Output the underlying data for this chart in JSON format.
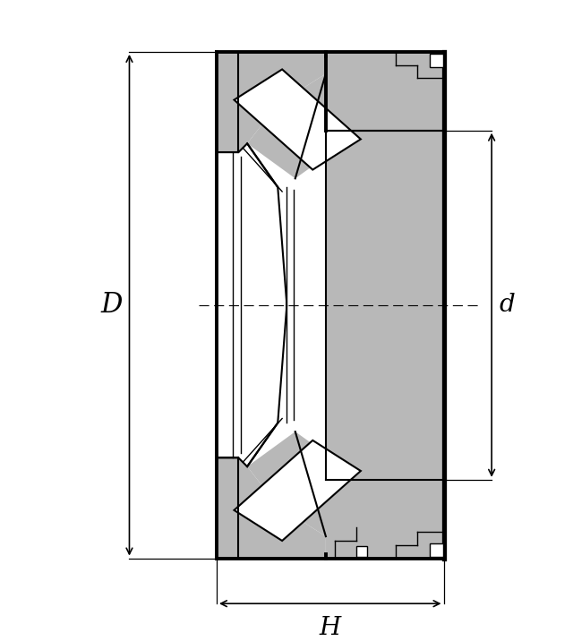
{
  "bg_color": "#ffffff",
  "gray": "#b8b8b8",
  "black": "#000000",
  "white": "#ffffff",
  "dim_D_label": "D",
  "dim_d_label": "d",
  "dim_H_label": "H",
  "fig_width": 6.4,
  "fig_height": 7.16,
  "lw_outer": 2.8,
  "lw_inner": 1.5,
  "lw_thin": 1.0,
  "lw_dim": 1.2
}
